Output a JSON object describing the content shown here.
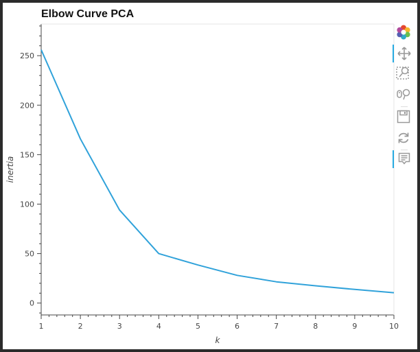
{
  "chart_data": {
    "type": "line",
    "title": "Elbow Curve PCA",
    "xlabel": "k",
    "ylabel": "inertia",
    "x": [
      1,
      2,
      3,
      4,
      5,
      6,
      7,
      8,
      9,
      10
    ],
    "series": [
      {
        "values": [
          256,
          166,
          94,
          50,
          38.5,
          28,
          21.5,
          17.5,
          13.8,
          10.5
        ],
        "color": "#30a2da"
      }
    ],
    "xlim": [
      1,
      10
    ],
    "ylim": [
      -12,
      282
    ],
    "xticks": [
      1,
      2,
      3,
      4,
      5,
      6,
      7,
      8,
      9,
      10
    ],
    "yticks": [
      0,
      50,
      100,
      150,
      200,
      250
    ],
    "grid": false
  },
  "toolbar": {
    "tools": [
      {
        "name": "bokeh-logo-icon",
        "active": false
      },
      {
        "name": "pan-icon",
        "active": true
      },
      {
        "name": "box-zoom-icon",
        "active": false
      },
      {
        "name": "wheel-zoom-icon",
        "active": false
      },
      {
        "name": "save-icon",
        "active": false
      },
      {
        "name": "reset-icon",
        "active": false
      },
      {
        "name": "hover-icon",
        "active": true
      }
    ]
  }
}
